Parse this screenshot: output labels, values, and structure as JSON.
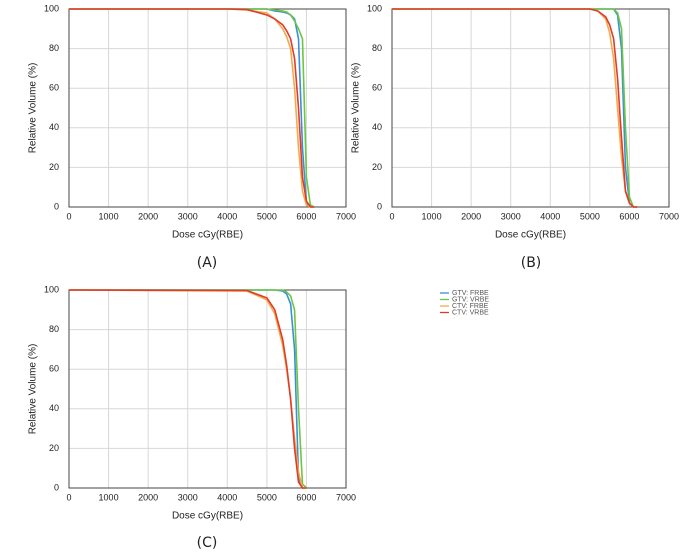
{
  "chart_data": [
    {
      "type": "line",
      "label": "(A)",
      "xlabel": "Dose cGy(RBE)",
      "ylabel": "Relative Volume (%)",
      "x": [
        0,
        4000,
        4500,
        5000,
        5200,
        5400,
        5500,
        5600,
        5700,
        5800,
        5900,
        6000,
        6100,
        6200
      ],
      "xlim": [
        0,
        7000
      ],
      "ylim": [
        0,
        100
      ],
      "xticks": [
        0,
        1000,
        2000,
        3000,
        4000,
        5000,
        6000,
        7000
      ],
      "yticks": [
        0,
        20,
        40,
        60,
        80,
        100
      ],
      "grid": true,
      "series": [
        {
          "color": "#3b8fd9",
          "values": [
            100,
            100,
            100,
            100,
            99,
            98.5,
            98,
            97,
            95,
            85,
            30,
            2,
            0,
            0
          ]
        },
        {
          "color": "#6cc644",
          "values": [
            100,
            100,
            100,
            100,
            99.5,
            99,
            98.5,
            97,
            94,
            90,
            85,
            15,
            1,
            0
          ]
        },
        {
          "color": "#f5a94a",
          "values": [
            100,
            100,
            99.5,
            98,
            95,
            90,
            86,
            80,
            60,
            30,
            8,
            1,
            0,
            0
          ]
        },
        {
          "color": "#e03c2c",
          "values": [
            100,
            100,
            99.7,
            97,
            95,
            92,
            89,
            85,
            75,
            50,
            15,
            3,
            0,
            0
          ]
        }
      ]
    },
    {
      "type": "line",
      "label": "(B)",
      "xlabel": "Dose cGy(RBE)",
      "ylabel": "Relative Volume (%)",
      "x": [
        0,
        5000,
        5200,
        5400,
        5500,
        5600,
        5700,
        5800,
        5900,
        6000,
        6100,
        6200
      ],
      "xlim": [
        0,
        7000
      ],
      "ylim": [
        0,
        100
      ],
      "xticks": [
        0,
        1000,
        2000,
        3000,
        4000,
        5000,
        6000,
        7000
      ],
      "yticks": [
        0,
        20,
        40,
        60,
        80,
        100
      ],
      "grid": true,
      "series": [
        {
          "color": "#3b8fd9",
          "values": [
            100,
            100,
            100,
            100,
            100,
            100,
            97,
            80,
            20,
            2,
            0,
            0
          ]
        },
        {
          "color": "#6cc644",
          "values": [
            100,
            100,
            100,
            100,
            100,
            100,
            98,
            90,
            40,
            5,
            0,
            0
          ]
        },
        {
          "color": "#f5a94a",
          "values": [
            100,
            100,
            99,
            95,
            88,
            75,
            50,
            25,
            8,
            2,
            0,
            0
          ]
        },
        {
          "color": "#e03c2c",
          "values": [
            100,
            100,
            99,
            96,
            92,
            85,
            65,
            35,
            8,
            2,
            0,
            0
          ]
        }
      ]
    },
    {
      "type": "line",
      "label": "(C)",
      "xlabel": "Dose cGy(RBE)",
      "ylabel": "Relative Volume (%)",
      "x": [
        0,
        4500,
        5000,
        5200,
        5400,
        5500,
        5600,
        5700,
        5800,
        5900,
        6000
      ],
      "xlim": [
        0,
        7000
      ],
      "ylim": [
        0,
        100
      ],
      "xticks": [
        0,
        1000,
        2000,
        3000,
        4000,
        5000,
        6000,
        7000
      ],
      "yticks": [
        0,
        20,
        40,
        60,
        80,
        100
      ],
      "grid": true,
      "series": [
        {
          "color": "#3b8fd9",
          "values": [
            100,
            100,
            100,
            100,
            99.5,
            98,
            93,
            70,
            5,
            0,
            0
          ]
        },
        {
          "color": "#6cc644",
          "values": [
            100,
            100,
            100,
            100,
            100,
            99,
            97,
            90,
            40,
            2,
            0
          ]
        },
        {
          "color": "#f5a94a",
          "values": [
            100,
            99.5,
            95,
            88,
            72,
            60,
            45,
            25,
            8,
            0,
            0
          ]
        },
        {
          "color": "#e03c2c",
          "values": [
            100,
            99.7,
            96,
            90,
            75,
            62,
            45,
            20,
            3,
            0,
            0
          ]
        }
      ]
    }
  ],
  "legend": [
    {
      "name": "GTV: FRBE",
      "color": "#3b8fd9"
    },
    {
      "name": "GTV: VRBE",
      "color": "#6cc644"
    },
    {
      "name": "CTV: FRBE",
      "color": "#f5a94a"
    },
    {
      "name": "CTV: VRBE",
      "color": "#e03c2c"
    }
  ]
}
